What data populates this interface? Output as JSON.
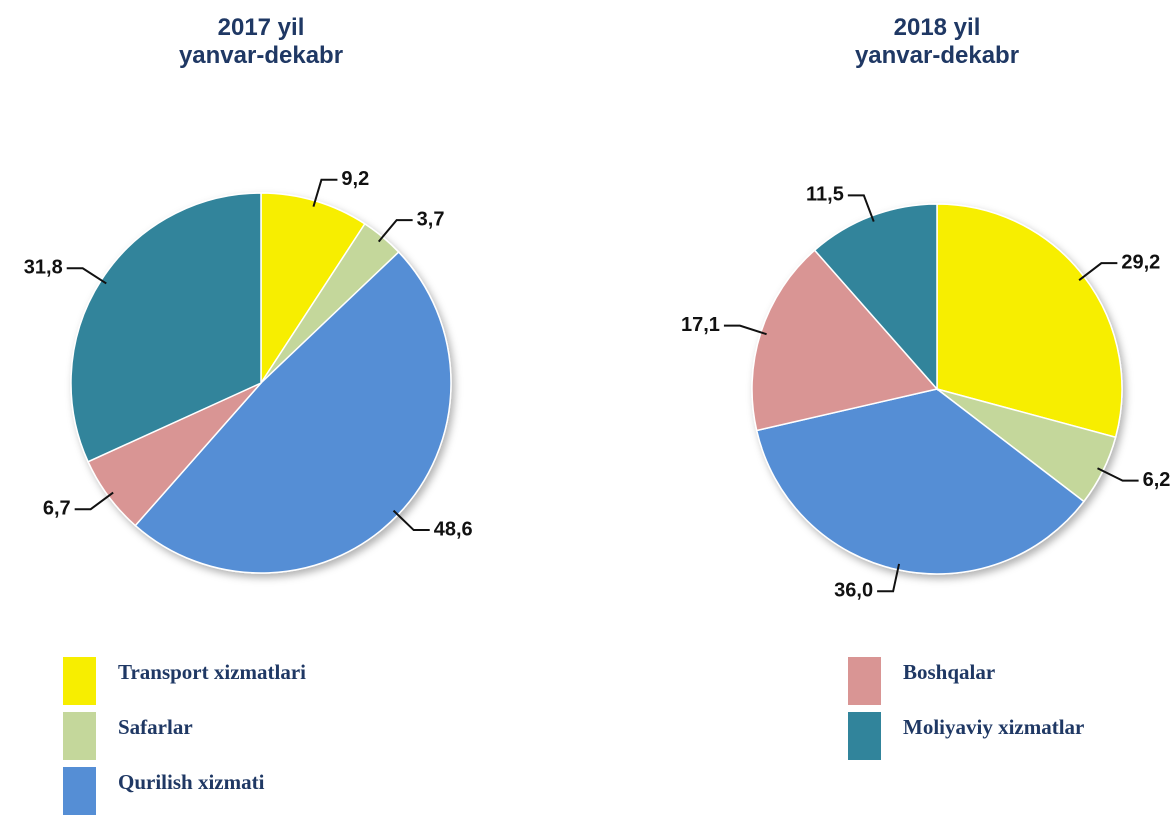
{
  "chart_data": [
    {
      "type": "pie",
      "title": "2017 yil",
      "subtitle": "yanvar-dekabr",
      "categories": [
        "Transport xizmatlari",
        "Safarlar",
        "Qurilish xizmati",
        "Boshqalar",
        "Moliyaviy xizmatlar"
      ],
      "values": [
        9.2,
        3.7,
        48.6,
        6.7,
        31.8
      ],
      "value_labels": [
        "9,2",
        "3,7",
        "48,6",
        "6,7",
        "31,8"
      ],
      "colors": [
        "#f7ee00",
        "#c4d79b",
        "#558ed5",
        "#d99594",
        "#31849b"
      ]
    },
    {
      "type": "pie",
      "title": "2018 yil",
      "subtitle": "yanvar-dekabr",
      "categories": [
        "Transport xizmatlari",
        "Safarlar",
        "Qurilish xizmati",
        "Boshqalar",
        "Moliyaviy xizmatlar"
      ],
      "values": [
        29.2,
        6.2,
        36.0,
        17.1,
        11.5
      ],
      "value_labels": [
        "29,2",
        "6,2",
        "36,0",
        "17,1",
        "11,5"
      ],
      "colors": [
        "#f7ee00",
        "#c4d79b",
        "#558ed5",
        "#d99594",
        "#31849b"
      ]
    }
  ]
}
